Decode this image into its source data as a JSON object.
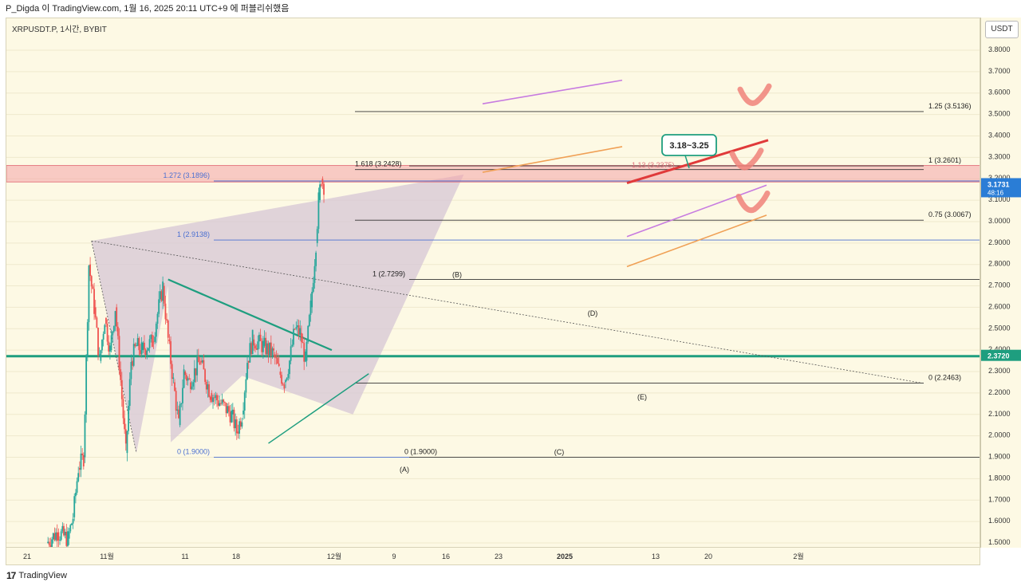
{
  "header": {
    "text": "P_Digda 이 TradingView.com, 1월 16, 2025 20:11 UTC+9 에 퍼블리쉬했음"
  },
  "symbol_label": "XRPUSDT.P, 1시간, BYBIT",
  "currency_label": "USDT",
  "footer": {
    "logo_text": "TradingView",
    "logo_mark": "17"
  },
  "colors": {
    "background": "#fdf9e4",
    "candle_up": "#26a69a",
    "candle_down": "#ef5350",
    "support_line": "#1e9e7f",
    "fib_blue": "#4a6fd1",
    "pattern_fill": "#d6c6d6",
    "resistance_zone": "#f4a4a8",
    "target_red": "#e03a3a",
    "channel_purple": "#c77be0",
    "channel_orange": "#f0a055",
    "check_mark": "#f0827a",
    "current_price_box": "#2a7dd6"
  },
  "chart_data": {
    "type": "candlestick",
    "title": "XRPUSDT.P, 1시간, BYBIT",
    "ylabel": "USDT",
    "ylim": [
      1.5,
      3.8
    ],
    "y_ticks": [
      "1.5000",
      "1.6000",
      "1.7000",
      "1.8000",
      "1.9000",
      "2.0000",
      "2.1000",
      "2.2000",
      "2.3000",
      "2.4000",
      "2.5000",
      "2.6000",
      "2.7000",
      "2.8000",
      "2.9000",
      "3.0000",
      "3.1000",
      "3.2000",
      "3.3000",
      "3.4000",
      "3.5000",
      "3.6000",
      "3.7000",
      "3.8000"
    ],
    "x_ticks": [
      "21",
      "11월",
      "11",
      "18",
      "12월",
      "9",
      "16",
      "23",
      "2025",
      "13",
      "20",
      "2월"
    ],
    "current_price": "3.1731",
    "countdown": "48:16",
    "support_price": "2.3720",
    "price_path": [
      {
        "t": "11-25",
        "v": 1.5
      },
      {
        "t": "11-27",
        "v": 1.55
      },
      {
        "t": "11-29",
        "v": 1.52
      },
      {
        "t": "11-30",
        "v": 1.62
      },
      {
        "t": "12-01",
        "v": 1.85
      },
      {
        "t": "12-02",
        "v": 1.9
      },
      {
        "t": "12-03",
        "v": 2.8
      },
      {
        "t": "12-04",
        "v": 2.6
      },
      {
        "t": "12-05",
        "v": 2.35
      },
      {
        "t": "12-06",
        "v": 2.55
      },
      {
        "t": "12-07",
        "v": 2.4
      },
      {
        "t": "12-08",
        "v": 2.6
      },
      {
        "t": "12-10",
        "v": 1.92
      },
      {
        "t": "12-11",
        "v": 2.35
      },
      {
        "t": "12-12",
        "v": 2.42
      },
      {
        "t": "12-13",
        "v": 2.4
      },
      {
        "t": "12-15",
        "v": 2.44
      },
      {
        "t": "12-17",
        "v": 2.7
      },
      {
        "t": "12-18",
        "v": 2.45
      },
      {
        "t": "12-19",
        "v": 2.25
      },
      {
        "t": "12-20",
        "v": 2.05
      },
      {
        "t": "12-21",
        "v": 2.3
      },
      {
        "t": "12-22",
        "v": 2.25
      },
      {
        "t": "12-24",
        "v": 2.35
      },
      {
        "t": "12-26",
        "v": 2.2
      },
      {
        "t": "12-28",
        "v": 2.15
      },
      {
        "t": "12-30",
        "v": 2.1
      },
      {
        "t": "12-31",
        "v": 2.02
      },
      {
        "t": "01-01",
        "v": 2.1
      },
      {
        "t": "01-02",
        "v": 2.35
      },
      {
        "t": "01-03",
        "v": 2.45
      },
      {
        "t": "01-05",
        "v": 2.42
      },
      {
        "t": "01-07",
        "v": 2.38
      },
      {
        "t": "01-08",
        "v": 2.3
      },
      {
        "t": "01-09",
        "v": 2.25
      },
      {
        "t": "01-10",
        "v": 2.35
      },
      {
        "t": "01-11",
        "v": 2.5
      },
      {
        "t": "01-12",
        "v": 2.48
      },
      {
        "t": "01-13",
        "v": 2.35
      },
      {
        "t": "01-14",
        "v": 2.6
      },
      {
        "t": "01-15",
        "v": 2.9
      },
      {
        "t": "01-15b",
        "v": 3.1
      },
      {
        "t": "01-16",
        "v": 3.2
      },
      {
        "t": "01-16b",
        "v": 3.17
      }
    ],
    "levels": [
      {
        "label": "1.25 (3.5136)",
        "value": 3.5136
      },
      {
        "label": "1 (3.2601)",
        "value": 3.2601
      },
      {
        "label": "1.618 (3.2428)",
        "value": 3.2428
      },
      {
        "label": "1.13 (3.2375)",
        "value": 3.2375
      },
      {
        "label": "1.272 (3.1896)",
        "value": 3.1896
      },
      {
        "label": "0.75 (3.0067)",
        "value": 3.0067
      },
      {
        "label": "1 (2.9138)",
        "value": 2.9138
      },
      {
        "label": "1 (2.7299)",
        "value": 2.7299
      },
      {
        "label": "0 (2.2463)",
        "value": 2.2463
      },
      {
        "label": "0 (1.9000)",
        "value": 1.9
      },
      {
        "label": "0 (1.9000)",
        "value": 1.9
      }
    ],
    "wave_labels": [
      "(A)",
      "(B)",
      "(C)",
      "(D)",
      "(E)"
    ],
    "target_callout": "3.18~3.25"
  }
}
